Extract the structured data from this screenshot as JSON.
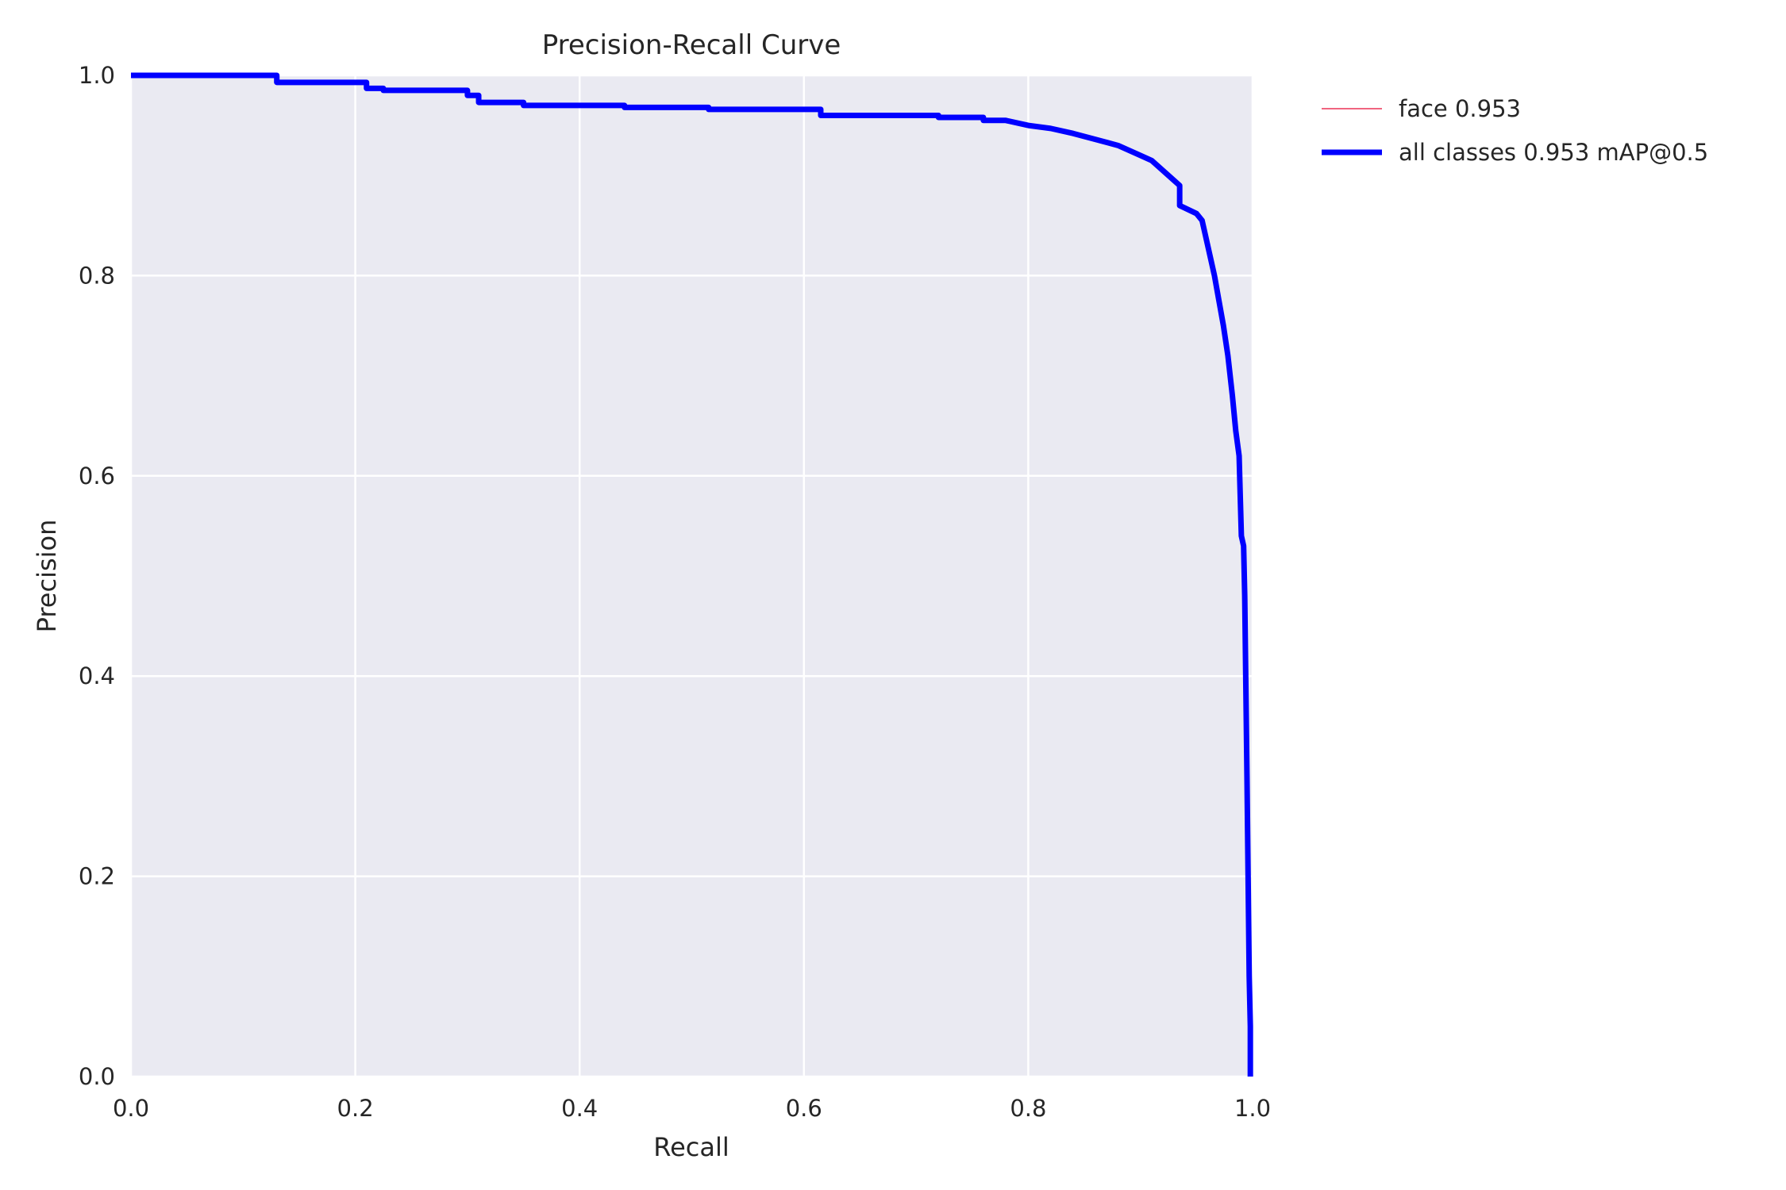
{
  "chart_data": {
    "type": "line",
    "title": "Precision-Recall Curve",
    "xlabel": "Recall",
    "ylabel": "Precision",
    "xlim": [
      0,
      1
    ],
    "ylim": [
      0,
      1
    ],
    "xticks": [
      "0.0",
      "0.2",
      "0.4",
      "0.6",
      "0.8",
      "1.0"
    ],
    "yticks": [
      "0.0",
      "0.2",
      "0.4",
      "0.6",
      "0.8",
      "1.0"
    ],
    "grid": true,
    "legend_position": "outside-right-top",
    "colors": {
      "background": "#EAEAF2",
      "grid": "#FFFFFF"
    },
    "series": [
      {
        "name": "face 0.953",
        "color": "#F0657F",
        "line_weight": "thin",
        "x": [
          0.0,
          0.13,
          0.13,
          0.21,
          0.21,
          0.225,
          0.225,
          0.3,
          0.3,
          0.31,
          0.31,
          0.35,
          0.35,
          0.44,
          0.44,
          0.515,
          0.515,
          0.615,
          0.615,
          0.72,
          0.72,
          0.76,
          0.76,
          0.78,
          0.8,
          0.82,
          0.84,
          0.86,
          0.88,
          0.9,
          0.91,
          0.92,
          0.93,
          0.935,
          0.935,
          0.95,
          0.955,
          0.958,
          0.962,
          0.966,
          0.97,
          0.974,
          0.978,
          0.982,
          0.985,
          0.988,
          0.99,
          0.992,
          0.993,
          0.994,
          0.995,
          0.996,
          0.997,
          0.998,
          0.998
        ],
        "y": [
          1.0,
          1.0,
          0.993,
          0.993,
          0.987,
          0.987,
          0.985,
          0.985,
          0.98,
          0.98,
          0.973,
          0.973,
          0.97,
          0.97,
          0.968,
          0.968,
          0.966,
          0.966,
          0.96,
          0.96,
          0.958,
          0.958,
          0.955,
          0.955,
          0.95,
          0.947,
          0.942,
          0.936,
          0.93,
          0.92,
          0.915,
          0.905,
          0.895,
          0.89,
          0.87,
          0.862,
          0.855,
          0.84,
          0.82,
          0.8,
          0.775,
          0.75,
          0.72,
          0.68,
          0.645,
          0.62,
          0.54,
          0.53,
          0.48,
          0.39,
          0.3,
          0.2,
          0.1,
          0.05,
          0.0
        ]
      },
      {
        "name": "all classes 0.953 mAP@0.5",
        "color": "#0000FF",
        "line_weight": "thick",
        "x": [
          0.0,
          0.13,
          0.13,
          0.21,
          0.21,
          0.225,
          0.225,
          0.3,
          0.3,
          0.31,
          0.31,
          0.35,
          0.35,
          0.44,
          0.44,
          0.515,
          0.515,
          0.615,
          0.615,
          0.72,
          0.72,
          0.76,
          0.76,
          0.78,
          0.8,
          0.82,
          0.84,
          0.86,
          0.88,
          0.9,
          0.91,
          0.92,
          0.93,
          0.935,
          0.935,
          0.95,
          0.955,
          0.958,
          0.962,
          0.966,
          0.97,
          0.974,
          0.978,
          0.982,
          0.985,
          0.988,
          0.99,
          0.992,
          0.993,
          0.994,
          0.995,
          0.996,
          0.997,
          0.998,
          0.998
        ],
        "y": [
          1.0,
          1.0,
          0.993,
          0.993,
          0.987,
          0.987,
          0.985,
          0.985,
          0.98,
          0.98,
          0.973,
          0.973,
          0.97,
          0.97,
          0.968,
          0.968,
          0.966,
          0.966,
          0.96,
          0.96,
          0.958,
          0.958,
          0.955,
          0.955,
          0.95,
          0.947,
          0.942,
          0.936,
          0.93,
          0.92,
          0.915,
          0.905,
          0.895,
          0.89,
          0.87,
          0.862,
          0.855,
          0.84,
          0.82,
          0.8,
          0.775,
          0.75,
          0.72,
          0.68,
          0.645,
          0.62,
          0.54,
          0.53,
          0.48,
          0.39,
          0.3,
          0.2,
          0.1,
          0.05,
          0.0
        ]
      }
    ]
  }
}
